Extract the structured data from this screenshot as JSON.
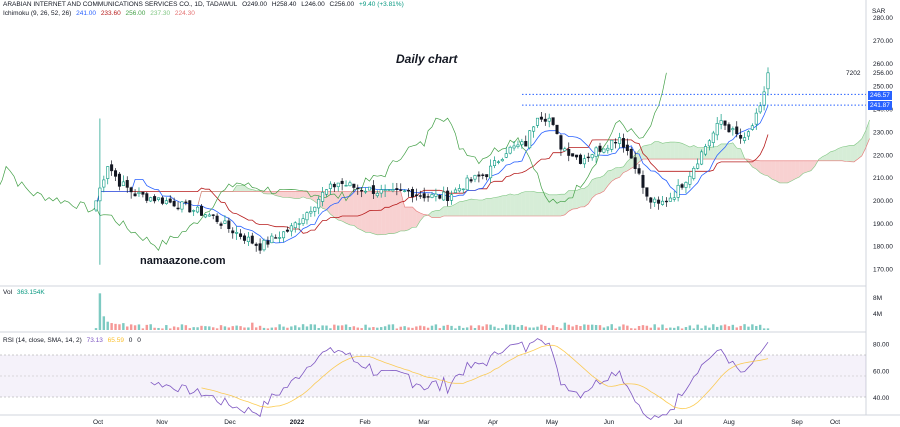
{
  "header": {
    "symbol": "ARABIAN INTERNET AND COMMUNICATIONS SERVICES CO., 1D, TADAWUL",
    "open": "O249.00",
    "high": "H258.40",
    "low": "L246.00",
    "close": "C256.00",
    "change": "+9.40 (+3.81%)",
    "ichimoku_label": "Ichimoku (9, 26, 52, 26)",
    "ichimoku_values": [
      "241.00",
      "233.60",
      "256.00",
      "237.30",
      "224.30"
    ],
    "currency": "SAR"
  },
  "annotations": {
    "chart_title": "Daily chart",
    "watermark": "namaazone.com",
    "extra_tick": "7202"
  },
  "colors": {
    "up": "#089981",
    "down": "#131722",
    "tenkan": "#2962ff",
    "kijun": "#b71c1c",
    "lagging": "#43a047",
    "spanA": "#a5d6a7",
    "spanB": "#ef9a9a",
    "rsi": "#7e57c2",
    "rsi_ma": "#fbc02d"
  },
  "volume_panel": {
    "label": "Vol",
    "value": "363.154K",
    "ticks": [
      "8M",
      "4M"
    ]
  },
  "rsi_panel": {
    "label": "RSI (14, close, SMA, 14, 2)",
    "value1": "73.13",
    "value2": "65.59",
    "value3": "0",
    "value4": "0",
    "ticks": [
      "80.00",
      "60.00",
      "40.00"
    ]
  },
  "chart_data": {
    "type": "candlestick",
    "x_axis_labels": [
      "Oct",
      "Nov",
      "Dec",
      "2022",
      "Feb",
      "Mar",
      "Apr",
      "May",
      "Jun",
      "Jul",
      "Aug",
      "Sep",
      "Oct"
    ],
    "y_axis": {
      "ticks": [
        280,
        270,
        260,
        250,
        240,
        230,
        220,
        210,
        200,
        190,
        180,
        170
      ],
      "range": [
        164,
        287
      ]
    },
    "price_lines": [
      {
        "value": 246.57,
        "label": "246.57",
        "style": "dotted",
        "color": "#2962ff"
      },
      {
        "value": 241.87,
        "label": "241.87",
        "style": "dotted",
        "color": "#2962ff"
      }
    ],
    "current_price_tick": 256.0,
    "close_path_anchors": [
      [
        0,
        200
      ],
      [
        3,
        216
      ],
      [
        6,
        208
      ],
      [
        10,
        203
      ],
      [
        15,
        201
      ],
      [
        20,
        199
      ],
      [
        25,
        196
      ],
      [
        30,
        193
      ],
      [
        34,
        188
      ],
      [
        38,
        184
      ],
      [
        42,
        180
      ],
      [
        46,
        184
      ],
      [
        50,
        188
      ],
      [
        54,
        195
      ],
      [
        58,
        203
      ],
      [
        62,
        208
      ],
      [
        66,
        206
      ],
      [
        70,
        205
      ],
      [
        75,
        203
      ],
      [
        80,
        204
      ],
      [
        85,
        202
      ],
      [
        90,
        202
      ],
      [
        95,
        208
      ],
      [
        100,
        212
      ],
      [
        105,
        222
      ],
      [
        110,
        225
      ],
      [
        113,
        238
      ],
      [
        116,
        236
      ],
      [
        119,
        224
      ],
      [
        124,
        218
      ],
      [
        129,
        223
      ],
      [
        134,
        228
      ],
      [
        138,
        216
      ],
      [
        141,
        201
      ],
      [
        144,
        198
      ],
      [
        148,
        203
      ],
      [
        152,
        212
      ],
      [
        156,
        224
      ],
      [
        160,
        235
      ],
      [
        163,
        230
      ],
      [
        166,
        226
      ],
      [
        170,
        240
      ],
      [
        172,
        256
      ]
    ],
    "rsi_range": [
      28,
      88
    ]
  }
}
